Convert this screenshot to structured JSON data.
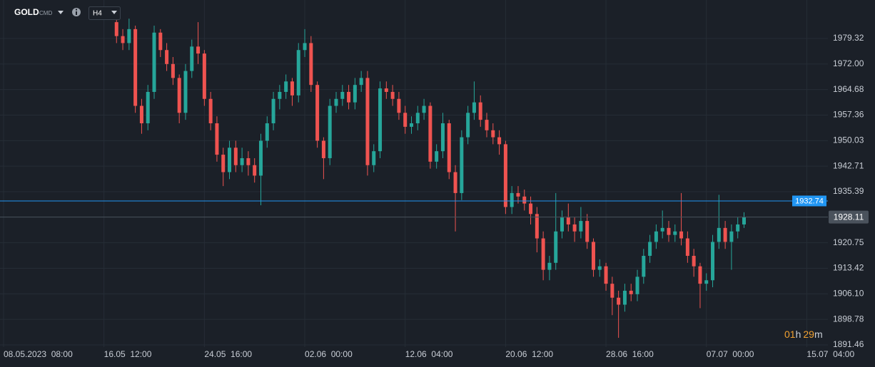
{
  "chart_data": {
    "type": "candlestick",
    "symbol": "GOLD",
    "exchange": "CMD",
    "timeframe": "H4",
    "countdown": [
      "01",
      "h",
      "29",
      "m"
    ],
    "up_color": "#26a69a",
    "down_color": "#ef5350",
    "grid": true,
    "xlim": [
      0,
      130
    ],
    "ylim": [
      1890.85,
      1990.35
    ],
    "xticks": [
      {
        "value": 0,
        "label": "08.05.2023  08:00"
      },
      {
        "value": 16,
        "label": "16.05  12:00"
      },
      {
        "value": 32,
        "label": "24.05  16:00"
      },
      {
        "value": 48,
        "label": "02.06  00:00"
      },
      {
        "value": 64,
        "label": "12.06  04:00"
      },
      {
        "value": 80,
        "label": "20.06  12:00"
      },
      {
        "value": 96,
        "label": "28.06  16:00"
      },
      {
        "value": 112,
        "label": "07.07  00:00"
      },
      {
        "value": 128,
        "label": "15.07  04:00"
      }
    ],
    "yticks": [
      1979.32,
      {
        "value": 1972,
        "label": "1972.00"
      },
      1964.68,
      1957.36,
      1950.03,
      1942.71,
      1935.39,
      1920.75,
      1913.42,
      {
        "value": 1906.1,
        "label": "1906.10"
      },
      1898.78,
      1891.46
    ],
    "alert_line": {
      "value": 1932.74,
      "color": "#2196f3"
    },
    "last_price": {
      "value": 1928.11,
      "color": "#4a525c"
    },
    "x": [
      18,
      19,
      20,
      21,
      22,
      23,
      24,
      25,
      26,
      27,
      28,
      29,
      30,
      31,
      32,
      33,
      34,
      35,
      36,
      37,
      38,
      39,
      40,
      41,
      42,
      43,
      44,
      45,
      46,
      47,
      48,
      49,
      50,
      51,
      52,
      53,
      54,
      55,
      56,
      57,
      58,
      59,
      60,
      61,
      62,
      63,
      64,
      65,
      66,
      67,
      68,
      69,
      70,
      71,
      72,
      73,
      74,
      75,
      76,
      77,
      78,
      79,
      80,
      81,
      82,
      83,
      84,
      85,
      86,
      87,
      88,
      89,
      90,
      91,
      92,
      93,
      94,
      95,
      96,
      97,
      98,
      99,
      100,
      101,
      102,
      103,
      104,
      105,
      106,
      107,
      108,
      109,
      110,
      111,
      112,
      113,
      114,
      115,
      116,
      117,
      118
    ],
    "open": [
      1984,
      1980,
      1978,
      1982,
      1960,
      1955,
      1964,
      1981,
      1976,
      1972,
      1968,
      1958,
      1970,
      1977,
      1975,
      1962,
      1955,
      1946,
      1941,
      1948,
      1943,
      1945,
      1943,
      1940,
      1950,
      1955,
      1962,
      1964,
      1967,
      1963,
      1976,
      1978,
      1966,
      1950,
      1945,
      1960,
      1962,
      1964,
      1961,
      1966,
      1968,
      1943,
      1947,
      1965,
      1964,
      1962,
      1958,
      1954,
      1955,
      1958,
      1960,
      1944,
      1947,
      1955,
      1941,
      1935,
      1951,
      1958,
      1961,
      1956,
      1953,
      1951,
      1949,
      1931,
      1935,
      1934,
      1932,
      1929,
      1922,
      1913,
      1915,
      1924,
      1928,
      1926,
      1924,
      1927,
      1921,
      1913,
      1914,
      1909,
      1905,
      1903,
      1907,
      1906,
      1911,
      1917,
      1921,
      1924,
      1925,
      1923,
      1924,
      1922,
      1917,
      1914,
      1909,
      1910,
      1921,
      1925,
      1921,
      1924,
      1926
    ],
    "high": [
      1986,
      1982,
      1985,
      1983,
      1962,
      1966,
      1983,
      1982,
      1978,
      1974,
      1969,
      1972,
      1979,
      1984,
      1976,
      1964,
      1957,
      1948,
      1950,
      1950,
      1948,
      1947,
      1945,
      1952,
      1957,
      1964,
      1966,
      1969,
      1968,
      1978,
      1982,
      1980,
      1967,
      1951,
      1962,
      1964,
      1966,
      1966,
      1968,
      1970,
      1970,
      1949,
      1967,
      1967,
      1966,
      1964,
      1960,
      1957,
      1960,
      1962,
      1961,
      1949,
      1958,
      1956,
      1943,
      1953,
      1960,
      1967,
      1963,
      1958,
      1955,
      1953,
      1950,
      1937,
      1937,
      1936,
      1934,
      1931,
      1924,
      1917,
      1935,
      1930,
      1932,
      1928,
      1931,
      1929,
      1922,
      1916,
      1915,
      1911,
      1907,
      1909,
      1909,
      1913,
      1919,
      1923,
      1926,
      1930,
      1927,
      1926,
      1935,
      1924,
      1919,
      1915,
      1912,
      1923,
      1934.5,
      1927,
      1926,
      1928,
      1929.5
    ],
    "low": [
      1978,
      1976,
      1976,
      1958,
      1952,
      1953,
      1962,
      1974,
      1970,
      1966,
      1955,
      1956,
      1968,
      1972,
      1960,
      1953,
      1944,
      1937,
      1939,
      1941,
      1941,
      1940,
      1938,
      1931.5,
      1948,
      1953,
      1959,
      1962,
      1960,
      1961,
      1974,
      1964,
      1948,
      1939,
      1943,
      1958,
      1960,
      1959,
      1959,
      1964,
      1940,
      1941,
      1945,
      1962,
      1960,
      1956,
      1952,
      1952,
      1953,
      1956,
      1942,
      1942,
      1945,
      1939,
      1924,
      1933,
      1949,
      1956,
      1954,
      1951,
      1949,
      1946,
      1929,
      1929,
      1932,
      1930,
      1926,
      1918,
      1910,
      1910,
      1913,
      1922,
      1924,
      1921,
      1922,
      1919,
      1911,
      1911,
      1907,
      1900,
      1893.5,
      1901,
      1904,
      1904,
      1909,
      1915,
      1919,
      1922,
      1921,
      1921,
      1920,
      1915,
      1911,
      1902,
      1907,
      1908,
      1919,
      1919,
      1913,
      1922,
      1925
    ],
    "close": [
      1980,
      1978,
      1982,
      1960,
      1955,
      1964,
      1981,
      1976,
      1972,
      1968,
      1958,
      1970,
      1977,
      1975,
      1962,
      1955,
      1946,
      1941,
      1948,
      1943,
      1945,
      1943,
      1940,
      1950,
      1955,
      1962,
      1964,
      1967,
      1963,
      1976,
      1978,
      1966,
      1950,
      1945,
      1960,
      1962,
      1964,
      1961,
      1966,
      1968,
      1943,
      1947,
      1965,
      1964,
      1962,
      1958,
      1954,
      1955,
      1958,
      1960,
      1944,
      1947,
      1955,
      1941,
      1935,
      1951,
      1958,
      1961,
      1956,
      1953,
      1951,
      1949,
      1931,
      1935,
      1934,
      1932,
      1929,
      1922,
      1913,
      1915,
      1924,
      1928,
      1926,
      1924,
      1927,
      1921,
      1913,
      1914,
      1909,
      1905,
      1903,
      1907,
      1906,
      1911,
      1917,
      1921,
      1924,
      1925,
      1923,
      1924,
      1922,
      1917,
      1914,
      1909,
      1910,
      1921,
      1925,
      1921,
      1924,
      1926,
      1928.11
    ]
  }
}
